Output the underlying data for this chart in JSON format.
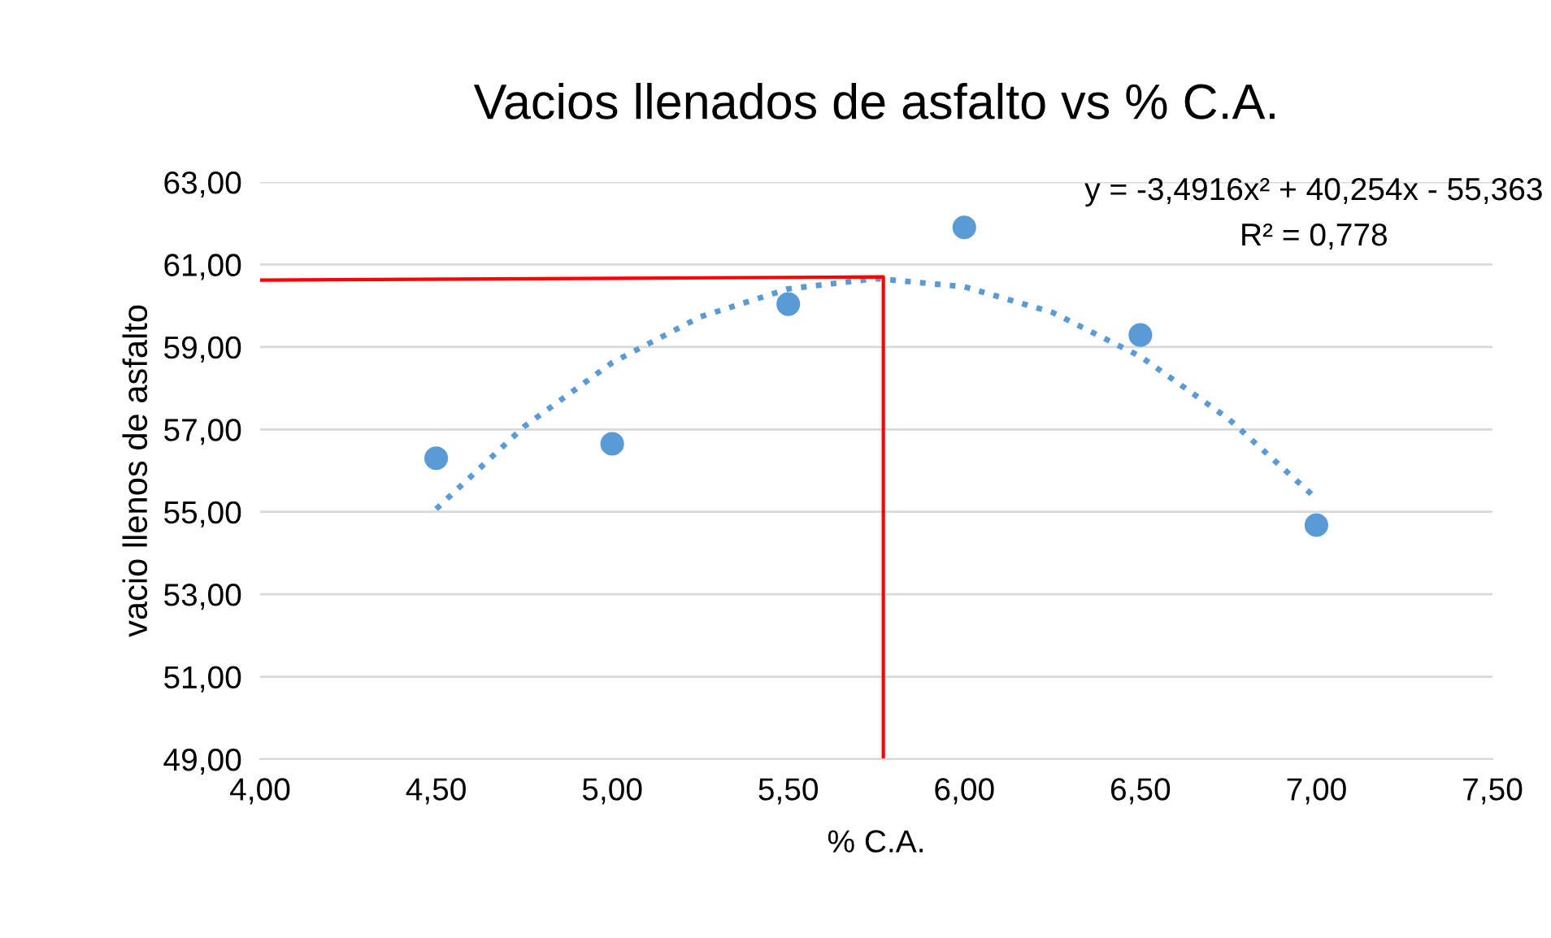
{
  "chart_data": {
    "type": "scatter",
    "title": "Vacios llenados de asfalto vs % C.A.",
    "xlabel": "% C.A.",
    "ylabel": "vacio llenos de asfalto",
    "xlim": [
      4.0,
      7.5
    ],
    "ylim": [
      49.0,
      63.0
    ],
    "xticks": [
      {
        "value": 4.0,
        "label": "4,00"
      },
      {
        "value": 4.5,
        "label": "4,50"
      },
      {
        "value": 5.0,
        "label": "5,00"
      },
      {
        "value": 5.5,
        "label": "5,50"
      },
      {
        "value": 6.0,
        "label": "6,00"
      },
      {
        "value": 6.5,
        "label": "6,50"
      },
      {
        "value": 7.0,
        "label": "7,00"
      },
      {
        "value": 7.5,
        "label": "7,50"
      }
    ],
    "yticks": [
      {
        "value": 49,
        "label": "49,00"
      },
      {
        "value": 51,
        "label": "51,00"
      },
      {
        "value": 53,
        "label": "53,00"
      },
      {
        "value": 55,
        "label": "55,00"
      },
      {
        "value": 57,
        "label": "57,00"
      },
      {
        "value": 59,
        "label": "59,00"
      },
      {
        "value": 61,
        "label": "61,00"
      },
      {
        "value": 63,
        "label": "63,00"
      }
    ],
    "grid": "y",
    "legend": false,
    "series": [
      {
        "color": "#5b9bd5",
        "marker": "circle",
        "x": [
          4.5,
          5.0,
          5.5,
          6.0,
          6.5,
          7.0
        ],
        "values": [
          56.3,
          56.65,
          60.04,
          61.9,
          59.29,
          54.68
        ]
      },
      {
        "type": "line",
        "color": "#5b9bd5",
        "line_style": "dotted",
        "marker": "none",
        "x": [
          4.5,
          4.75,
          5.0,
          5.25,
          5.5,
          5.75,
          6.0,
          6.25,
          6.5,
          6.75,
          7.0
        ],
        "values": [
          55.07,
          57.07,
          58.62,
          59.73,
          60.41,
          60.66,
          60.46,
          59.84,
          58.77,
          57.26,
          55.32
        ]
      },
      {
        "type": "line",
        "color": "#ff0000",
        "line_style": "solid",
        "marker": "none",
        "x": [
          4.0,
          5.77,
          5.77
        ],
        "values": [
          60.62,
          60.7,
          49.0
        ]
      }
    ],
    "annotations": [
      "y = -3,4916x² + 40,254x - 55,363",
      "R² = 0,778"
    ]
  }
}
